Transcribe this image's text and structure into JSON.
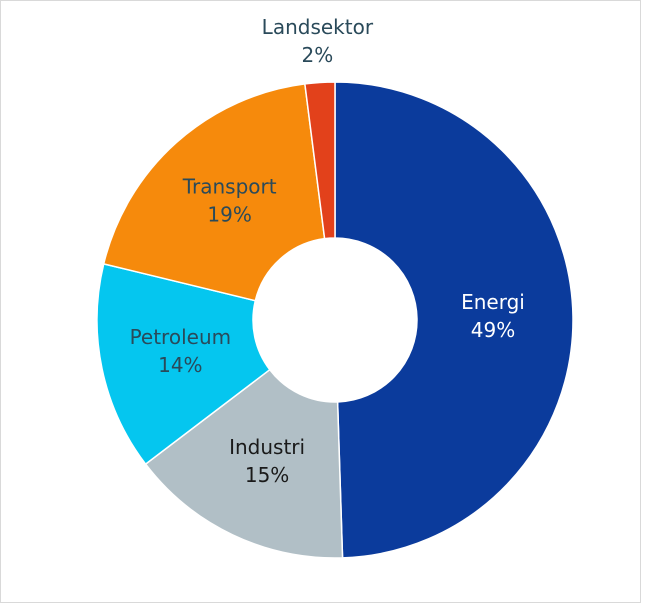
{
  "chart_data": {
    "type": "donut",
    "categories": [
      "Energi",
      "Industri",
      "Petroleum",
      "Transport",
      "Landsektor"
    ],
    "values": [
      49,
      15,
      14,
      19,
      2
    ],
    "value_labels": [
      "49%",
      "15%",
      "14%",
      "19%",
      "2%"
    ],
    "colors": [
      "#0b3b9c",
      "#b1bfc6",
      "#05c6ef",
      "#f68a0c",
      "#e2411b"
    ]
  }
}
